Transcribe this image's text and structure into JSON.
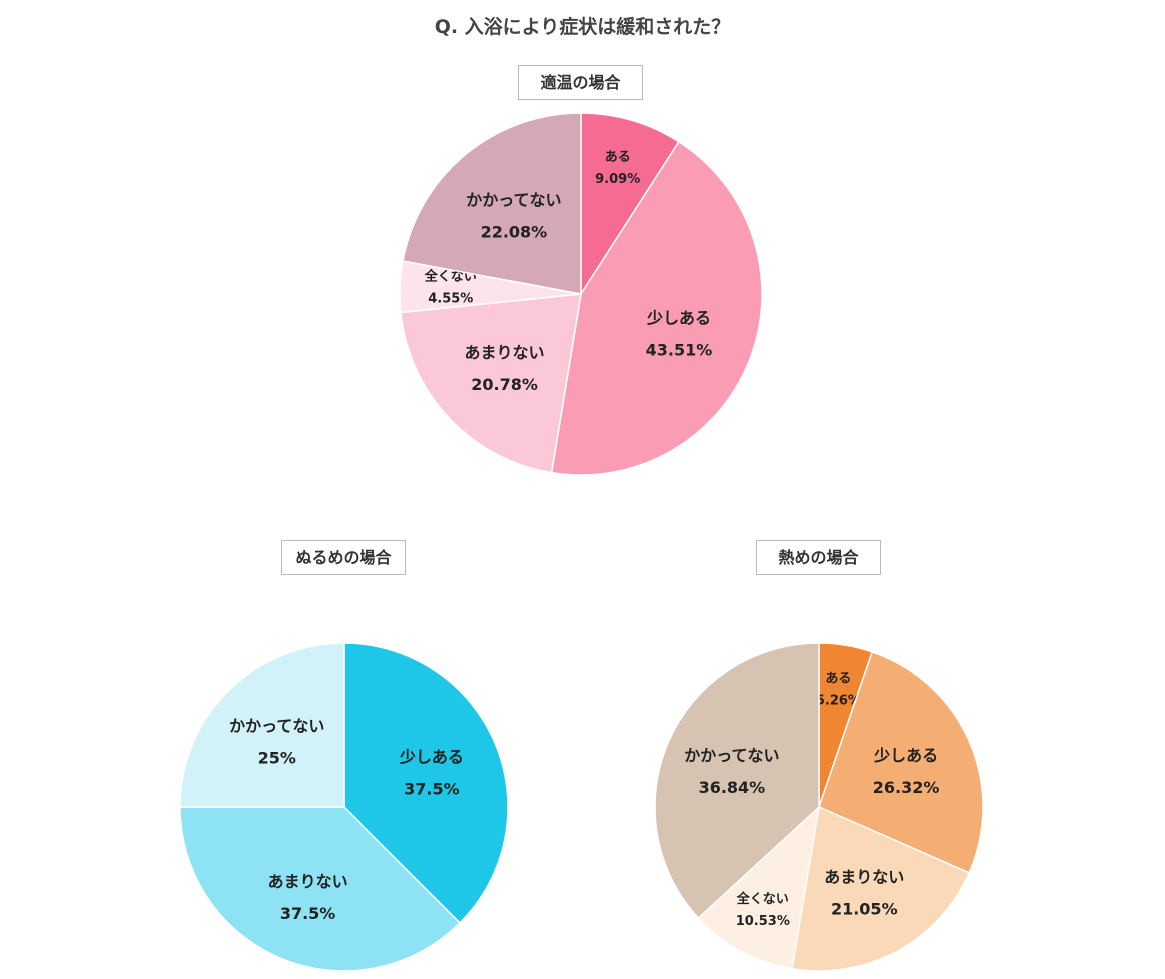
{
  "title": "Q.  入浴により症状は緩和された？",
  "chart_data": [
    {
      "type": "pie",
      "title": "適温の場合",
      "categories": [
        "ある",
        "少しある",
        "あまりない",
        "全くない",
        "かかってない"
      ],
      "values": [
        9.09,
        43.51,
        20.78,
        4.55,
        22.08
      ],
      "labels": [
        "9.09%",
        "43.51%",
        "20.78%",
        "4.55%",
        "22.08%"
      ],
      "colors": [
        "#f56b92",
        "#f99cb4",
        "#fbc8d7",
        "#fde4ea",
        "#d4a8b4"
      ]
    },
    {
      "type": "pie",
      "title": "ぬるめの場合",
      "categories": [
        "少しある",
        "あまりない",
        "かかってない"
      ],
      "values": [
        37.5,
        37.5,
        25
      ],
      "labels": [
        "37.5%",
        "37.5%",
        "25%"
      ],
      "colors": [
        "#1ec6e8",
        "#8de3f3",
        "#d2f2f9"
      ]
    },
    {
      "type": "pie",
      "title": "熱めの場合",
      "categories": [
        "ある",
        "少しある",
        "あまりない",
        "全くない",
        "かかってない"
      ],
      "values": [
        5.26,
        26.32,
        21.05,
        10.53,
        36.84
      ],
      "labels": [
        "5.26%",
        "26.32%",
        "21.05%",
        "10.53%",
        "36.84%"
      ],
      "colors": [
        "#f08532",
        "#f4ad72",
        "#f9d9b8",
        "#fdf0e3",
        "#d6c3b2"
      ]
    }
  ]
}
